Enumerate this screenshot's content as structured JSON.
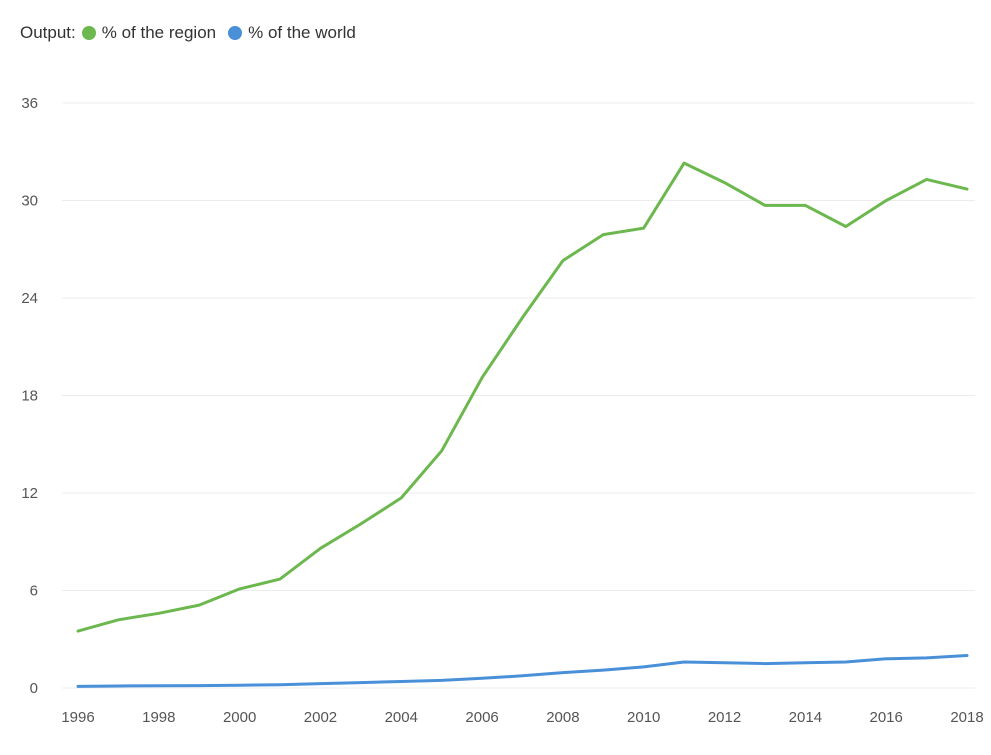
{
  "legend": {
    "title": "Output:",
    "items": [
      {
        "label": "% of the region",
        "color": "#6cb84f"
      },
      {
        "label": "% of the world",
        "color": "#4a90d9"
      }
    ]
  },
  "chart_data": {
    "type": "line",
    "x": [
      1996,
      1997,
      1998,
      1999,
      2000,
      2001,
      2002,
      2003,
      2004,
      2005,
      2006,
      2007,
      2008,
      2009,
      2010,
      2011,
      2012,
      2013,
      2014,
      2015,
      2016,
      2017,
      2018
    ],
    "series": [
      {
        "name": "% of the region",
        "color": "#6cb84f",
        "values": [
          3.5,
          4.2,
          4.6,
          5.1,
          6.1,
          6.7,
          8.6,
          10.1,
          11.7,
          14.6,
          19.1,
          22.8,
          26.3,
          27.9,
          28.3,
          32.3,
          31.1,
          29.7,
          29.7,
          28.4,
          30.0,
          31.3,
          30.7
        ]
      },
      {
        "name": "% of the world",
        "color": "#4a90d9",
        "values": [
          0.1,
          0.12,
          0.14,
          0.15,
          0.17,
          0.2,
          0.27,
          0.33,
          0.4,
          0.47,
          0.6,
          0.75,
          0.95,
          1.1,
          1.3,
          1.6,
          1.55,
          1.5,
          1.55,
          1.6,
          1.8,
          1.85,
          2.0
        ]
      }
    ],
    "yticks": [
      0,
      6,
      12,
      18,
      24,
      30,
      36
    ],
    "xticks": [
      1996,
      1998,
      2000,
      2002,
      2004,
      2006,
      2008,
      2010,
      2012,
      2014,
      2016,
      2018
    ],
    "ylim": [
      0,
      36
    ],
    "xlim": [
      1996,
      2018
    ],
    "grid": true,
    "legend_position": "top-left"
  }
}
